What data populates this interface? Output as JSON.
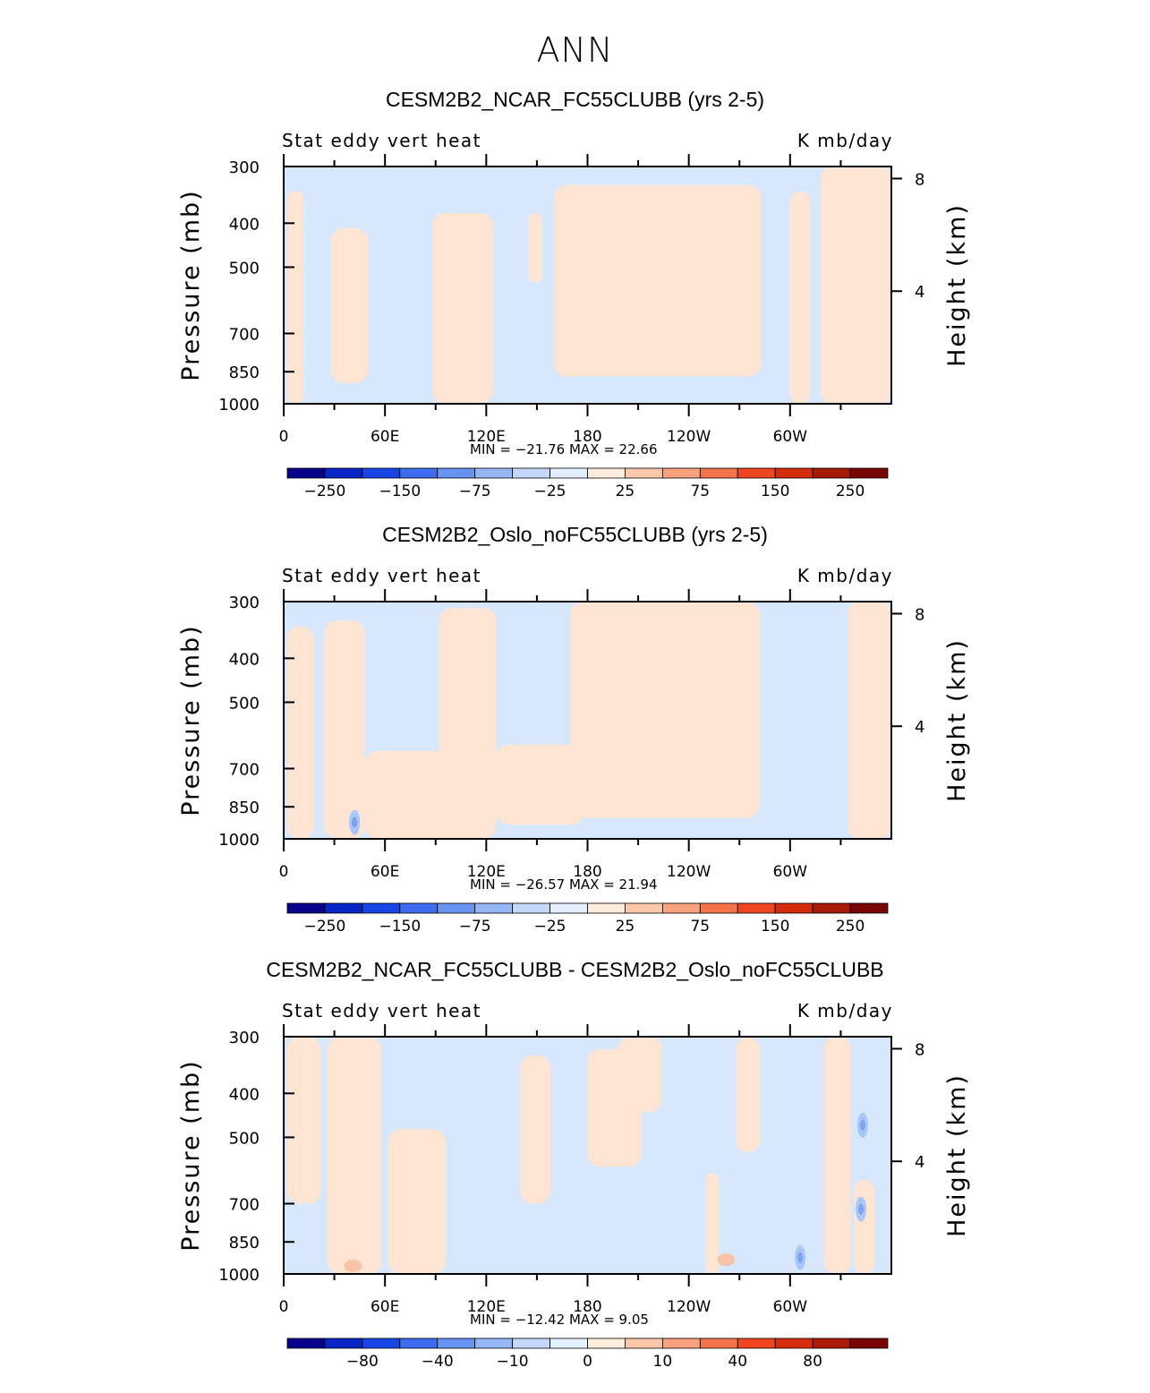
{
  "main_title": "ANN",
  "colors": {
    "neg_fill": "#d7e8fd",
    "pos_fill": "#fee5d3",
    "neg_mid": "#a8c6f8",
    "neg_deep": "#7ba3f2",
    "pos_mid": "#f9c4a6",
    "pos_deep": "#f1977a",
    "colorbar": [
      "#08008a",
      "#0a25c6",
      "#1745e6",
      "#3e6cf0",
      "#6893f3",
      "#96b7f6",
      "#c3d8fb",
      "#e3efff",
      "#feecdd",
      "#fcc8aa",
      "#f9a27e",
      "#f6734a",
      "#ef4620",
      "#d42c0c",
      "#a81906",
      "#7a0505"
    ]
  },
  "chart_data": [
    {
      "type": "contour",
      "title": "CESM2B2_NCAR_FC55CLUBB (yrs 2-5)",
      "left_label": "Stat eddy vert heat",
      "right_label": "K mb/day",
      "ylabel": "Pressure (mb)",
      "ylabel_right": "Height (km)",
      "y_ticks": [
        "300",
        "400",
        "500",
        "700",
        "850",
        "1000"
      ],
      "y_tick_values": [
        300,
        400,
        500,
        700,
        850,
        1000
      ],
      "right_ticks": [
        "8",
        "4"
      ],
      "x_ticks": [
        "0",
        "60E",
        "120E",
        "180",
        "120W",
        "60W"
      ],
      "x_range": [
        0,
        360
      ],
      "y_range_mb": [
        300,
        1000
      ],
      "stats": "MIN = −21.76   MAX =   22.66",
      "min": -21.76,
      "max": 22.66,
      "colorbar_ticks": [
        "−250",
        "−150",
        "−75",
        "−25",
        "25",
        "75",
        "150",
        "250"
      ],
      "pos_regions": [
        {
          "lon": [
            2,
            12
          ],
          "p": [
            340,
            1000
          ]
        },
        {
          "lon": [
            28,
            50
          ],
          "p": [
            410,
            900
          ]
        },
        {
          "lon": [
            88,
            124
          ],
          "p": [
            380,
            1000
          ]
        },
        {
          "lon": [
            145,
            153
          ],
          "p": [
            380,
            540
          ]
        },
        {
          "lon": [
            160,
            283
          ],
          "p": [
            330,
            870
          ]
        },
        {
          "lon": [
            300,
            312
          ],
          "p": [
            340,
            1000
          ]
        },
        {
          "lon": [
            318,
            360
          ],
          "p": [
            300,
            1000
          ]
        }
      ],
      "neg_spots": [],
      "pos_spots": []
    },
    {
      "type": "contour",
      "title": "CESM2B2_Oslo_noFC55CLUBB (yrs 2-5)",
      "left_label": "Stat eddy vert heat",
      "right_label": "K mb/day",
      "ylabel": "Pressure (mb)",
      "ylabel_right": "Height (km)",
      "y_ticks": [
        "300",
        "400",
        "500",
        "700",
        "850",
        "1000"
      ],
      "y_tick_values": [
        300,
        400,
        500,
        700,
        850,
        1000
      ],
      "right_ticks": [
        "8",
        "4"
      ],
      "x_ticks": [
        "0",
        "60E",
        "120E",
        "180",
        "120W",
        "60W"
      ],
      "x_range": [
        0,
        360
      ],
      "y_range_mb": [
        300,
        1000
      ],
      "stats": "MIN = −26.57   MAX =   21.94",
      "min": -26.57,
      "max": 21.94,
      "colorbar_ticks": [
        "−250",
        "−150",
        "−75",
        "−25",
        "25",
        "75",
        "150",
        "250"
      ],
      "pos_regions": [
        {
          "lon": [
            2,
            18
          ],
          "p": [
            340,
            1000
          ]
        },
        {
          "lon": [
            24,
            48
          ],
          "p": [
            330,
            1000
          ]
        },
        {
          "lon": [
            48,
            100
          ],
          "p": [
            640,
            1000
          ]
        },
        {
          "lon": [
            92,
            126
          ],
          "p": [
            310,
            1000
          ]
        },
        {
          "lon": [
            126,
            178
          ],
          "p": [
            620,
            930
          ]
        },
        {
          "lon": [
            170,
            282
          ],
          "p": [
            300,
            900
          ]
        },
        {
          "lon": [
            334,
            360
          ],
          "p": [
            300,
            1000
          ]
        }
      ],
      "neg_spots": [
        {
          "lon": 42,
          "p": 920
        }
      ],
      "pos_spots": []
    },
    {
      "type": "contour",
      "title": "CESM2B2_NCAR_FC55CLUBB - CESM2B2_Oslo_noFC55CLUBB",
      "left_label": "Stat eddy vert heat",
      "right_label": "K mb/day",
      "ylabel": "Pressure (mb)",
      "ylabel_right": "Height (km)",
      "y_ticks": [
        "300",
        "400",
        "500",
        "700",
        "850",
        "1000"
      ],
      "y_tick_values": [
        300,
        400,
        500,
        700,
        850,
        1000
      ],
      "right_ticks": [
        "8",
        "4"
      ],
      "x_ticks": [
        "0",
        "60E",
        "120E",
        "180",
        "120W",
        "60W"
      ],
      "x_range": [
        0,
        360
      ],
      "y_range_mb": [
        300,
        1000
      ],
      "stats": "MIN = −12.42   MAX =    9.05",
      "min": -12.42,
      "max": 9.05,
      "colorbar_ticks": [
        "−80",
        "−40",
        "−10",
        "0",
        "10",
        "40",
        "80"
      ],
      "pos_regions": [
        {
          "lon": [
            2,
            22
          ],
          "p": [
            300,
            700
          ]
        },
        {
          "lon": [
            26,
            58
          ],
          "p": [
            300,
            1000
          ]
        },
        {
          "lon": [
            62,
            96
          ],
          "p": [
            480,
            1000
          ]
        },
        {
          "lon": [
            140,
            158
          ],
          "p": [
            330,
            700
          ]
        },
        {
          "lon": [
            180,
            212
          ],
          "p": [
            320,
            580
          ]
        },
        {
          "lon": [
            198,
            224
          ],
          "p": [
            300,
            440
          ]
        },
        {
          "lon": [
            250,
            258
          ],
          "p": [
            600,
            1000
          ]
        },
        {
          "lon": [
            268,
            282
          ],
          "p": [
            300,
            540
          ]
        },
        {
          "lon": [
            320,
            336
          ],
          "p": [
            300,
            1000
          ]
        },
        {
          "lon": [
            338,
            350
          ],
          "p": [
            620,
            1000
          ]
        }
      ],
      "neg_spots": [
        {
          "lon": 306,
          "p": 920
        },
        {
          "lon": 343,
          "p": 470
        },
        {
          "lon": 342,
          "p": 720
        }
      ],
      "pos_spots": [
        {
          "lon": 41,
          "p": 960
        },
        {
          "lon": 262,
          "p": 930
        }
      ]
    }
  ]
}
